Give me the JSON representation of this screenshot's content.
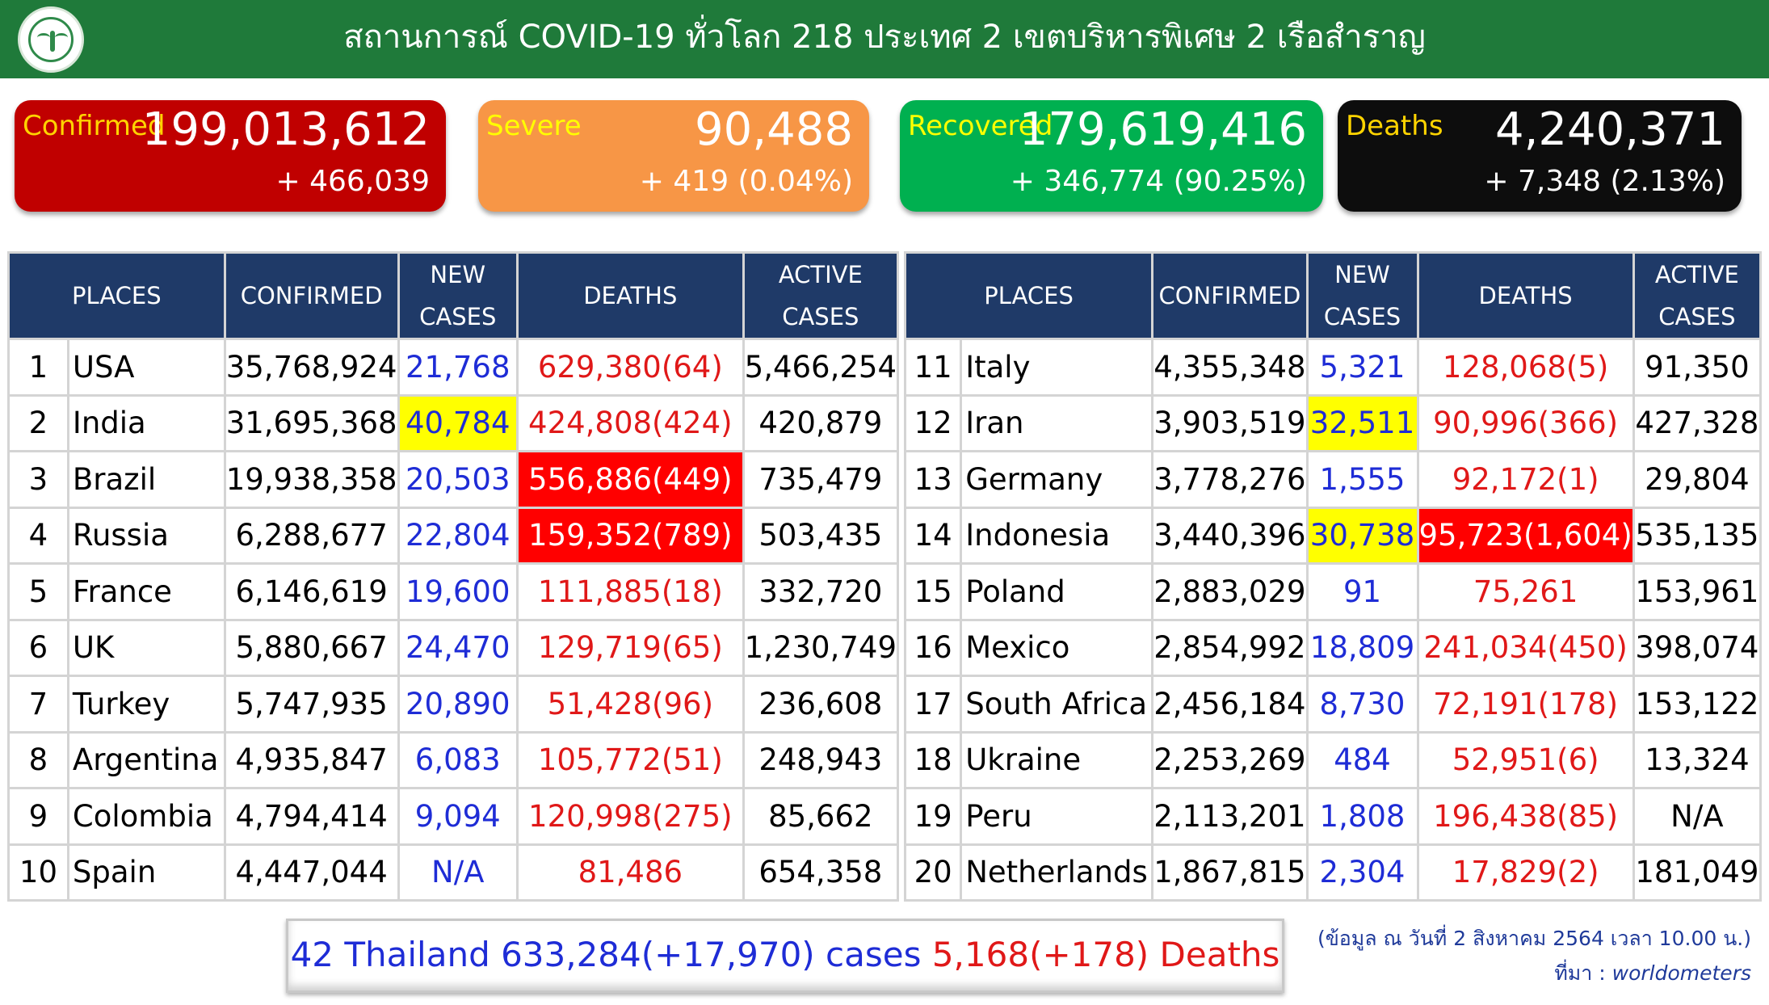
{
  "header": {
    "title": "สถานการณ์ COVID-19 ทั่วโลก 218 ประเทศ 2 เขตบริหารพิเศษ 2 เรือสำราญ",
    "logo_icon": "ministry-of-public-health-seal"
  },
  "summary": {
    "confirmed": {
      "label": "Confirmed",
      "value": "199,013,612",
      "delta": "+ 466,039",
      "bg": "#c00000",
      "label_color": "#ffd400"
    },
    "severe": {
      "label": "Severe",
      "value": "90,488",
      "delta": "+ 419 (0.04%)",
      "bg": "#f79646",
      "label_color": "#ffff00"
    },
    "recovered": {
      "label": "Recovered",
      "value": "179,619,416",
      "delta": "+ 346,774 (90.25%)",
      "bg": "#00b050",
      "label_color": "#ffff00"
    },
    "deaths": {
      "label": "Deaths",
      "value": "4,240,371",
      "delta": "+ 7,348 (2.13%)",
      "bg": "#0d0d0d",
      "label_color": "#ffd400"
    }
  },
  "table_headers": {
    "places": "PLACES",
    "confirmed": "CONFIRMED",
    "new_cases_1": "NEW",
    "new_cases_2": "CASES",
    "deaths": "DEATHS",
    "active_cases_1": "ACTIVE",
    "active_cases_2": "CASES"
  },
  "left_rows": [
    {
      "rank": "1",
      "place": "USA",
      "confirmed": "35,768,924",
      "new_cases": "21,768",
      "deaths": "629,380(64)",
      "active": "5,466,254"
    },
    {
      "rank": "2",
      "place": "India",
      "confirmed": "31,695,368",
      "new_cases": "40,784",
      "deaths": "424,808(424)",
      "active": "420,879",
      "new_highlight": "yellow"
    },
    {
      "rank": "3",
      "place": "Brazil",
      "confirmed": "19,938,358",
      "new_cases": "20,503",
      "deaths": "556,886(449)",
      "active": "735,479",
      "deaths_highlight": "red"
    },
    {
      "rank": "4",
      "place": "Russia",
      "confirmed": "6,288,677",
      "new_cases": "22,804",
      "deaths": "159,352(789)",
      "active": "503,435",
      "deaths_highlight": "red"
    },
    {
      "rank": "5",
      "place": "France",
      "confirmed": "6,146,619",
      "new_cases": "19,600",
      "deaths": "111,885(18)",
      "active": "332,720"
    },
    {
      "rank": "6",
      "place": "UK",
      "confirmed": "5,880,667",
      "new_cases": "24,470",
      "deaths": "129,719(65)",
      "active": "1,230,749"
    },
    {
      "rank": "7",
      "place": "Turkey",
      "confirmed": "5,747,935",
      "new_cases": "20,890",
      "deaths": "51,428(96)",
      "active": "236,608"
    },
    {
      "rank": "8",
      "place": "Argentina",
      "confirmed": "4,935,847",
      "new_cases": "6,083",
      "deaths": "105,772(51)",
      "active": "248,943"
    },
    {
      "rank": "9",
      "place": "Colombia",
      "confirmed": "4,794,414",
      "new_cases": "9,094",
      "deaths": "120,998(275)",
      "active": "85,662"
    },
    {
      "rank": "10",
      "place": "Spain",
      "confirmed": "4,447,044",
      "new_cases": "N/A",
      "deaths": "81,486",
      "active": "654,358"
    }
  ],
  "right_rows": [
    {
      "rank": "11",
      "place": "Italy",
      "confirmed": "4,355,348",
      "new_cases": "5,321",
      "deaths": "128,068(5)",
      "active": "91,350"
    },
    {
      "rank": "12",
      "place": "Iran",
      "confirmed": "3,903,519",
      "new_cases": "32,511",
      "deaths": "90,996(366)",
      "active": "427,328",
      "new_highlight": "yellow"
    },
    {
      "rank": "13",
      "place": "Germany",
      "confirmed": "3,778,276",
      "new_cases": "1,555",
      "deaths": "92,172(1)",
      "active": "29,804"
    },
    {
      "rank": "14",
      "place": "Indonesia",
      "confirmed": "3,440,396",
      "new_cases": "30,738",
      "deaths": "95,723(1,604)",
      "active": "535,135",
      "new_highlight": "yellow",
      "deaths_highlight": "red"
    },
    {
      "rank": "15",
      "place": "Poland",
      "confirmed": "2,883,029",
      "new_cases": "91",
      "deaths": "75,261",
      "active": "153,961"
    },
    {
      "rank": "16",
      "place": "Mexico",
      "confirmed": "2,854,992",
      "new_cases": "18,809",
      "deaths": "241,034(450)",
      "active": "398,074"
    },
    {
      "rank": "17",
      "place": "South Africa",
      "confirmed": "2,456,184",
      "new_cases": "8,730",
      "deaths": "72,191(178)",
      "active": "153,122"
    },
    {
      "rank": "18",
      "place": "Ukraine",
      "confirmed": "2,253,269",
      "new_cases": "484",
      "deaths": "52,951(6)",
      "active": "13,324"
    },
    {
      "rank": "19",
      "place": "Peru",
      "confirmed": "2,113,201",
      "new_cases": "1,808",
      "deaths": "196,438(85)",
      "active": "N/A"
    },
    {
      "rank": "20",
      "place": "Netherlands",
      "confirmed": "1,867,815",
      "new_cases": "2,304",
      "deaths": "17,829(2)",
      "active": "181,049"
    }
  ],
  "footer": {
    "thailand_cases": "42 Thailand 633,284(+17,970) cases",
    "thailand_deaths": "5,168(+178) Deaths",
    "date_note": "(ข้อมูล ณ วันที่ 2 สิงหาคม 2564 เวลา 10.00 น.)",
    "source_label": "ที่มา :",
    "source_name": "worldometers"
  }
}
